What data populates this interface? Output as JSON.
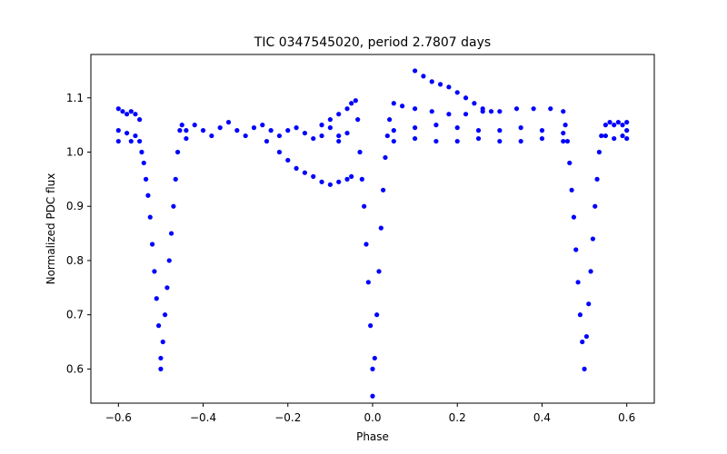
{
  "chart_data": {
    "type": "scatter",
    "title": "TIC 0347545020, period 2.7807 days",
    "xlabel": "Phase",
    "ylabel": "Normalized PDC flux",
    "xlim": [
      -0.665,
      0.665
    ],
    "ylim": [
      0.537,
      1.18
    ],
    "xticks": [
      -0.6,
      -0.4,
      -0.2,
      0.0,
      0.2,
      0.4,
      0.6
    ],
    "xtick_labels": [
      "−0.6",
      "−0.4",
      "−0.2",
      "0.0",
      "0.2",
      "0.4",
      "0.6"
    ],
    "yticks": [
      0.6,
      0.7,
      0.8,
      0.9,
      1.0,
      1.1
    ],
    "ytick_labels": [
      "0.6",
      "0.7",
      "0.8",
      "0.9",
      "1.0",
      "1.1"
    ],
    "grid": false,
    "marker_color": "#0000ff",
    "series": [
      {
        "name": "",
        "points": [
          [
            -0.6,
            1.08
          ],
          [
            -0.59,
            1.075
          ],
          [
            -0.58,
            1.07
          ],
          [
            -0.57,
            1.075
          ],
          [
            -0.56,
            1.07
          ],
          [
            -0.55,
            1.06
          ],
          [
            -0.6,
            1.04
          ],
          [
            -0.58,
            1.035
          ],
          [
            -0.56,
            1.03
          ],
          [
            -0.55,
            1.02
          ],
          [
            -0.6,
            1.02
          ],
          [
            -0.57,
            1.02
          ],
          [
            -0.545,
            1.0
          ],
          [
            -0.54,
            0.98
          ],
          [
            -0.535,
            0.95
          ],
          [
            -0.53,
            0.92
          ],
          [
            -0.525,
            0.88
          ],
          [
            -0.52,
            0.83
          ],
          [
            -0.515,
            0.78
          ],
          [
            -0.51,
            0.73
          ],
          [
            -0.505,
            0.68
          ],
          [
            -0.5,
            0.62
          ],
          [
            -0.5,
            0.6
          ],
          [
            -0.495,
            0.65
          ],
          [
            -0.49,
            0.7
          ],
          [
            -0.485,
            0.75
          ],
          [
            -0.48,
            0.8
          ],
          [
            -0.475,
            0.85
          ],
          [
            -0.47,
            0.9
          ],
          [
            -0.465,
            0.95
          ],
          [
            -0.46,
            1.0
          ],
          [
            -0.455,
            1.04
          ],
          [
            -0.45,
            1.05
          ],
          [
            -0.44,
            1.04
          ],
          [
            -0.4,
            1.04
          ],
          [
            -0.36,
            1.045
          ],
          [
            -0.32,
            1.04
          ],
          [
            -0.28,
            1.045
          ],
          [
            -0.24,
            1.04
          ],
          [
            -0.2,
            1.04
          ],
          [
            -0.16,
            1.035
          ],
          [
            -0.12,
            1.03
          ],
          [
            -0.08,
            1.03
          ],
          [
            -0.06,
            1.035
          ],
          [
            -0.44,
            1.025
          ],
          [
            -0.38,
            1.03
          ],
          [
            -0.3,
            1.03
          ],
          [
            -0.22,
            1.03
          ],
          [
            -0.14,
            1.025
          ],
          [
            -0.08,
            1.02
          ],
          [
            -0.42,
            1.05
          ],
          [
            -0.34,
            1.055
          ],
          [
            -0.26,
            1.05
          ],
          [
            -0.18,
            1.045
          ],
          [
            -0.1,
            1.045
          ],
          [
            -0.25,
            1.02
          ],
          [
            -0.22,
            1.0
          ],
          [
            -0.2,
            0.985
          ],
          [
            -0.18,
            0.97
          ],
          [
            -0.16,
            0.962
          ],
          [
            -0.14,
            0.955
          ],
          [
            -0.12,
            0.945
          ],
          [
            -0.1,
            0.94
          ],
          [
            -0.08,
            0.945
          ],
          [
            -0.06,
            0.95
          ],
          [
            -0.05,
            0.955
          ],
          [
            -0.12,
            1.05
          ],
          [
            -0.1,
            1.06
          ],
          [
            -0.08,
            1.07
          ],
          [
            -0.06,
            1.08
          ],
          [
            -0.05,
            1.09
          ],
          [
            -0.04,
            1.095
          ],
          [
            -0.035,
            1.06
          ],
          [
            -0.03,
            1.0
          ],
          [
            -0.025,
            0.95
          ],
          [
            -0.02,
            0.9
          ],
          [
            -0.015,
            0.83
          ],
          [
            -0.01,
            0.76
          ],
          [
            -0.005,
            0.68
          ],
          [
            0.0,
            0.6
          ],
          [
            0.0,
            0.55
          ],
          [
            0.005,
            0.62
          ],
          [
            0.01,
            0.7
          ],
          [
            0.015,
            0.78
          ],
          [
            0.02,
            0.86
          ],
          [
            0.025,
            0.93
          ],
          [
            0.03,
            0.99
          ],
          [
            0.035,
            1.03
          ],
          [
            0.04,
            1.06
          ],
          [
            0.05,
            1.09
          ],
          [
            0.07,
            1.085
          ],
          [
            0.1,
            1.08
          ],
          [
            0.14,
            1.075
          ],
          [
            0.18,
            1.07
          ],
          [
            0.22,
            1.07
          ],
          [
            0.26,
            1.075
          ],
          [
            0.3,
            1.075
          ],
          [
            0.34,
            1.08
          ],
          [
            0.38,
            1.08
          ],
          [
            0.42,
            1.08
          ],
          [
            0.45,
            1.075
          ],
          [
            0.05,
            1.04
          ],
          [
            0.1,
            1.045
          ],
          [
            0.15,
            1.05
          ],
          [
            0.2,
            1.045
          ],
          [
            0.25,
            1.04
          ],
          [
            0.3,
            1.04
          ],
          [
            0.35,
            1.045
          ],
          [
            0.4,
            1.04
          ],
          [
            0.45,
            1.035
          ],
          [
            0.05,
            1.02
          ],
          [
            0.1,
            1.025
          ],
          [
            0.15,
            1.02
          ],
          [
            0.2,
            1.02
          ],
          [
            0.25,
            1.025
          ],
          [
            0.3,
            1.02
          ],
          [
            0.35,
            1.02
          ],
          [
            0.4,
            1.025
          ],
          [
            0.45,
            1.02
          ],
          [
            0.1,
            1.15
          ],
          [
            0.12,
            1.14
          ],
          [
            0.14,
            1.13
          ],
          [
            0.16,
            1.125
          ],
          [
            0.18,
            1.12
          ],
          [
            0.2,
            1.11
          ],
          [
            0.22,
            1.1
          ],
          [
            0.24,
            1.09
          ],
          [
            0.26,
            1.08
          ],
          [
            0.28,
            1.075
          ],
          [
            0.455,
            1.05
          ],
          [
            0.46,
            1.02
          ],
          [
            0.465,
            0.98
          ],
          [
            0.47,
            0.93
          ],
          [
            0.475,
            0.88
          ],
          [
            0.48,
            0.82
          ],
          [
            0.485,
            0.76
          ],
          [
            0.49,
            0.7
          ],
          [
            0.495,
            0.65
          ],
          [
            0.5,
            0.6
          ],
          [
            0.505,
            0.66
          ],
          [
            0.51,
            0.72
          ],
          [
            0.515,
            0.78
          ],
          [
            0.52,
            0.84
          ],
          [
            0.525,
            0.9
          ],
          [
            0.53,
            0.95
          ],
          [
            0.535,
            1.0
          ],
          [
            0.54,
            1.03
          ],
          [
            0.55,
            1.05
          ],
          [
            0.56,
            1.055
          ],
          [
            0.57,
            1.05
          ],
          [
            0.58,
            1.055
          ],
          [
            0.59,
            1.05
          ],
          [
            0.6,
            1.055
          ],
          [
            0.55,
            1.03
          ],
          [
            0.57,
            1.025
          ],
          [
            0.59,
            1.03
          ],
          [
            0.6,
            1.025
          ],
          [
            0.6,
            1.04
          ]
        ]
      }
    ]
  }
}
